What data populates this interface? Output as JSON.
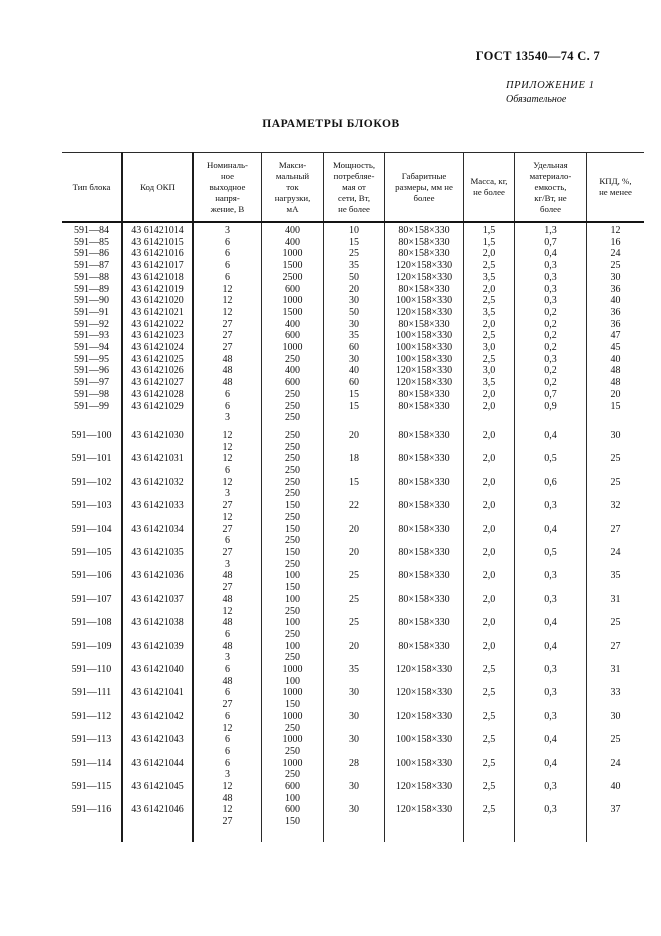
{
  "page": {
    "doc_ref": "ГОСТ 13540—74 С. 7",
    "appendix_label": "ПРИЛОЖЕНИЕ 1",
    "appendix_note": "Обязательное",
    "title": "ПАРАМЕТРЫ БЛОКОВ"
  },
  "table": {
    "headers": {
      "type": "Тип блока",
      "okp": "Код ОКП",
      "voltage": "Номиналь-\nное\nвыходное\nнапря-\nжение, В",
      "current": "Макси-\nмальный\nток\nнагрузки,\nмА",
      "power": "Мощность,\nпотребляе-\nмая от\nсети, Вт,\nне более",
      "dims": "Габаритные\nразмеры, мм не\nболее",
      "mass": "Масса, кг,\nне более",
      "material": "Удельная\nматериало-\nемкость,\nкг/Вт, не\nболее",
      "kpd": "КПД, %,\nне менее"
    },
    "rows": [
      {
        "type": "591—84",
        "okp": "43 61421014",
        "voltage": [
          "3"
        ],
        "current": [
          "400"
        ],
        "power": "10",
        "dims": "80×158×330",
        "mass": "1,5",
        "material": "1,3",
        "kpd": "12"
      },
      {
        "type": "591—85",
        "okp": "43 61421015",
        "voltage": [
          "6"
        ],
        "current": [
          "400"
        ],
        "power": "15",
        "dims": "80×158×330",
        "mass": "1,5",
        "material": "0,7",
        "kpd": "16"
      },
      {
        "type": "591—86",
        "okp": "43 61421016",
        "voltage": [
          "6"
        ],
        "current": [
          "1000"
        ],
        "power": "25",
        "dims": "80×158×330",
        "mass": "2,0",
        "material": "0,4",
        "kpd": "24"
      },
      {
        "type": "591—87",
        "okp": "43 61421017",
        "voltage": [
          "6"
        ],
        "current": [
          "1500"
        ],
        "power": "35",
        "dims": "120×158×330",
        "mass": "2,5",
        "material": "0,3",
        "kpd": "25"
      },
      {
        "type": "591—88",
        "okp": "43 61421018",
        "voltage": [
          "6"
        ],
        "current": [
          "2500"
        ],
        "power": "50",
        "dims": "120×158×330",
        "mass": "3,5",
        "material": "0,3",
        "kpd": "30"
      },
      {
        "type": "591—89",
        "okp": "43 61421019",
        "voltage": [
          "12"
        ],
        "current": [
          "600"
        ],
        "power": "20",
        "dims": "80×158×330",
        "mass": "2,0",
        "material": "0,3",
        "kpd": "36"
      },
      {
        "type": "591—90",
        "okp": "43 61421020",
        "voltage": [
          "12"
        ],
        "current": [
          "1000"
        ],
        "power": "30",
        "dims": "100×158×330",
        "mass": "2,5",
        "material": "0,3",
        "kpd": "40"
      },
      {
        "type": "591—91",
        "okp": "43 61421021",
        "voltage": [
          "12"
        ],
        "current": [
          "1500"
        ],
        "power": "50",
        "dims": "120×158×330",
        "mass": "3,5",
        "material": "0,2",
        "kpd": "36"
      },
      {
        "type": "591—92",
        "okp": "43 61421022",
        "voltage": [
          "27"
        ],
        "current": [
          "400"
        ],
        "power": "30",
        "dims": "80×158×330",
        "mass": "2,0",
        "material": "0,2",
        "kpd": "36"
      },
      {
        "type": "591—93",
        "okp": "43 61421023",
        "voltage": [
          "27"
        ],
        "current": [
          "600"
        ],
        "power": "35",
        "dims": "100×158×330",
        "mass": "2,5",
        "material": "0,2",
        "kpd": "47"
      },
      {
        "type": "591—94",
        "okp": "43 61421024",
        "voltage": [
          "27"
        ],
        "current": [
          "1000"
        ],
        "power": "60",
        "dims": "100×158×330",
        "mass": "3,0",
        "material": "0,2",
        "kpd": "45"
      },
      {
        "type": "591—95",
        "okp": "43 61421025",
        "voltage": [
          "48"
        ],
        "current": [
          "250"
        ],
        "power": "30",
        "dims": "100×158×330",
        "mass": "2,5",
        "material": "0,3",
        "kpd": "40"
      },
      {
        "type": "591—96",
        "okp": "43 61421026",
        "voltage": [
          "48"
        ],
        "current": [
          "400"
        ],
        "power": "40",
        "dims": "120×158×330",
        "mass": "3,0",
        "material": "0,2",
        "kpd": "48"
      },
      {
        "type": "591—97",
        "okp": "43 61421027",
        "voltage": [
          "48"
        ],
        "current": [
          "600"
        ],
        "power": "60",
        "dims": "120×158×330",
        "mass": "3,5",
        "material": "0,2",
        "kpd": "48"
      },
      {
        "type": "591—98",
        "okp": "43 61421028",
        "voltage": [
          "6"
        ],
        "current": [
          "250"
        ],
        "power": "15",
        "dims": "80×158×330",
        "mass": "2,0",
        "material": "0,7",
        "kpd": "20"
      },
      {
        "type": "591—99",
        "okp": "43 61421029",
        "voltage": [
          "6",
          "3"
        ],
        "current": [
          "250",
          "250"
        ],
        "power": "15",
        "dims": "80×158×330",
        "mass": "2,0",
        "material": "0,9",
        "kpd": "15"
      },
      {
        "type": "591—100",
        "okp": "43 61421030",
        "voltage": [
          "12",
          "12"
        ],
        "current": [
          "250",
          "250"
        ],
        "power": "20",
        "dims": "80×158×330",
        "mass": "2,0",
        "material": "0,4",
        "kpd": "30"
      },
      {
        "type": "591—101",
        "okp": "43 61421031",
        "voltage": [
          "12",
          "6"
        ],
        "current": [
          "250",
          "250"
        ],
        "power": "18",
        "dims": "80×158×330",
        "mass": "2,0",
        "material": "0,5",
        "kpd": "25"
      },
      {
        "type": "591—102",
        "okp": "43 61421032",
        "voltage": [
          "12",
          "3"
        ],
        "current": [
          "250",
          "250"
        ],
        "power": "15",
        "dims": "80×158×330",
        "mass": "2,0",
        "material": "0,6",
        "kpd": "25"
      },
      {
        "type": "591—103",
        "okp": "43 61421033",
        "voltage": [
          "27",
          "12"
        ],
        "current": [
          "150",
          "250"
        ],
        "power": "22",
        "dims": "80×158×330",
        "mass": "2,0",
        "material": "0,3",
        "kpd": "32"
      },
      {
        "type": "591—104",
        "okp": "43 61421034",
        "voltage": [
          "27",
          "6"
        ],
        "current": [
          "150",
          "250"
        ],
        "power": "20",
        "dims": "80×158×330",
        "mass": "2,0",
        "material": "0,4",
        "kpd": "27"
      },
      {
        "type": "591—105",
        "okp": "43 61421035",
        "voltage": [
          "27",
          "3"
        ],
        "current": [
          "150",
          "250"
        ],
        "power": "20",
        "dims": "80×158×330",
        "mass": "2,0",
        "material": "0,5",
        "kpd": "24"
      },
      {
        "type": "591—106",
        "okp": "43 61421036",
        "voltage": [
          "48",
          "27"
        ],
        "current": [
          "100",
          "150"
        ],
        "power": "25",
        "dims": "80×158×330",
        "mass": "2,0",
        "material": "0,3",
        "kpd": "35"
      },
      {
        "type": "591—107",
        "okp": "43 61421037",
        "voltage": [
          "48",
          "12"
        ],
        "current": [
          "100",
          "250"
        ],
        "power": "25",
        "dims": "80×158×330",
        "mass": "2,0",
        "material": "0,3",
        "kpd": "31"
      },
      {
        "type": "591—108",
        "okp": "43 61421038",
        "voltage": [
          "48",
          "6"
        ],
        "current": [
          "100",
          "250"
        ],
        "power": "25",
        "dims": "80×158×330",
        "mass": "2,0",
        "material": "0,4",
        "kpd": "25"
      },
      {
        "type": "591—109",
        "okp": "43 61421039",
        "voltage": [
          "48",
          "3"
        ],
        "current": [
          "100",
          "250"
        ],
        "power": "20",
        "dims": "80×158×330",
        "mass": "2,0",
        "material": "0,4",
        "kpd": "27"
      },
      {
        "type": "591—110",
        "okp": "43 61421040",
        "voltage": [
          "6",
          "48"
        ],
        "current": [
          "1000",
          "100"
        ],
        "power": "35",
        "dims": "120×158×330",
        "mass": "2,5",
        "material": "0,3",
        "kpd": "31"
      },
      {
        "type": "591—111",
        "okp": "43 61421041",
        "voltage": [
          "6",
          "27"
        ],
        "current": [
          "1000",
          "150"
        ],
        "power": "30",
        "dims": "120×158×330",
        "mass": "2,5",
        "material": "0,3",
        "kpd": "33"
      },
      {
        "type": "591—112",
        "okp": "43 61421042",
        "voltage": [
          "6",
          "12"
        ],
        "current": [
          "1000",
          "250"
        ],
        "power": "30",
        "dims": "120×158×330",
        "mass": "2,5",
        "material": "0,3",
        "kpd": "30"
      },
      {
        "type": "591—113",
        "okp": "43 61421043",
        "voltage": [
          "6",
          "6"
        ],
        "current": [
          "1000",
          "250"
        ],
        "power": "30",
        "dims": "100×158×330",
        "mass": "2,5",
        "material": "0,4",
        "kpd": "25"
      },
      {
        "type": "591—114",
        "okp": "43 61421044",
        "voltage": [
          "6",
          "3"
        ],
        "current": [
          "1000",
          "250"
        ],
        "power": "28",
        "dims": "100×158×330",
        "mass": "2,5",
        "material": "0,4",
        "kpd": "24"
      },
      {
        "type": "591—115",
        "okp": "43 61421045",
        "voltage": [
          "12",
          "48"
        ],
        "current": [
          "600",
          "100"
        ],
        "power": "30",
        "dims": "120×158×330",
        "mass": "2,5",
        "material": "0,3",
        "kpd": "40"
      },
      {
        "type": "591—116",
        "okp": "43 61421046",
        "voltage": [
          "12",
          "27"
        ],
        "current": [
          "600",
          "150"
        ],
        "power": "30",
        "dims": "120×158×330",
        "mass": "2,5",
        "material": "0,3",
        "kpd": "37"
      }
    ]
  }
}
